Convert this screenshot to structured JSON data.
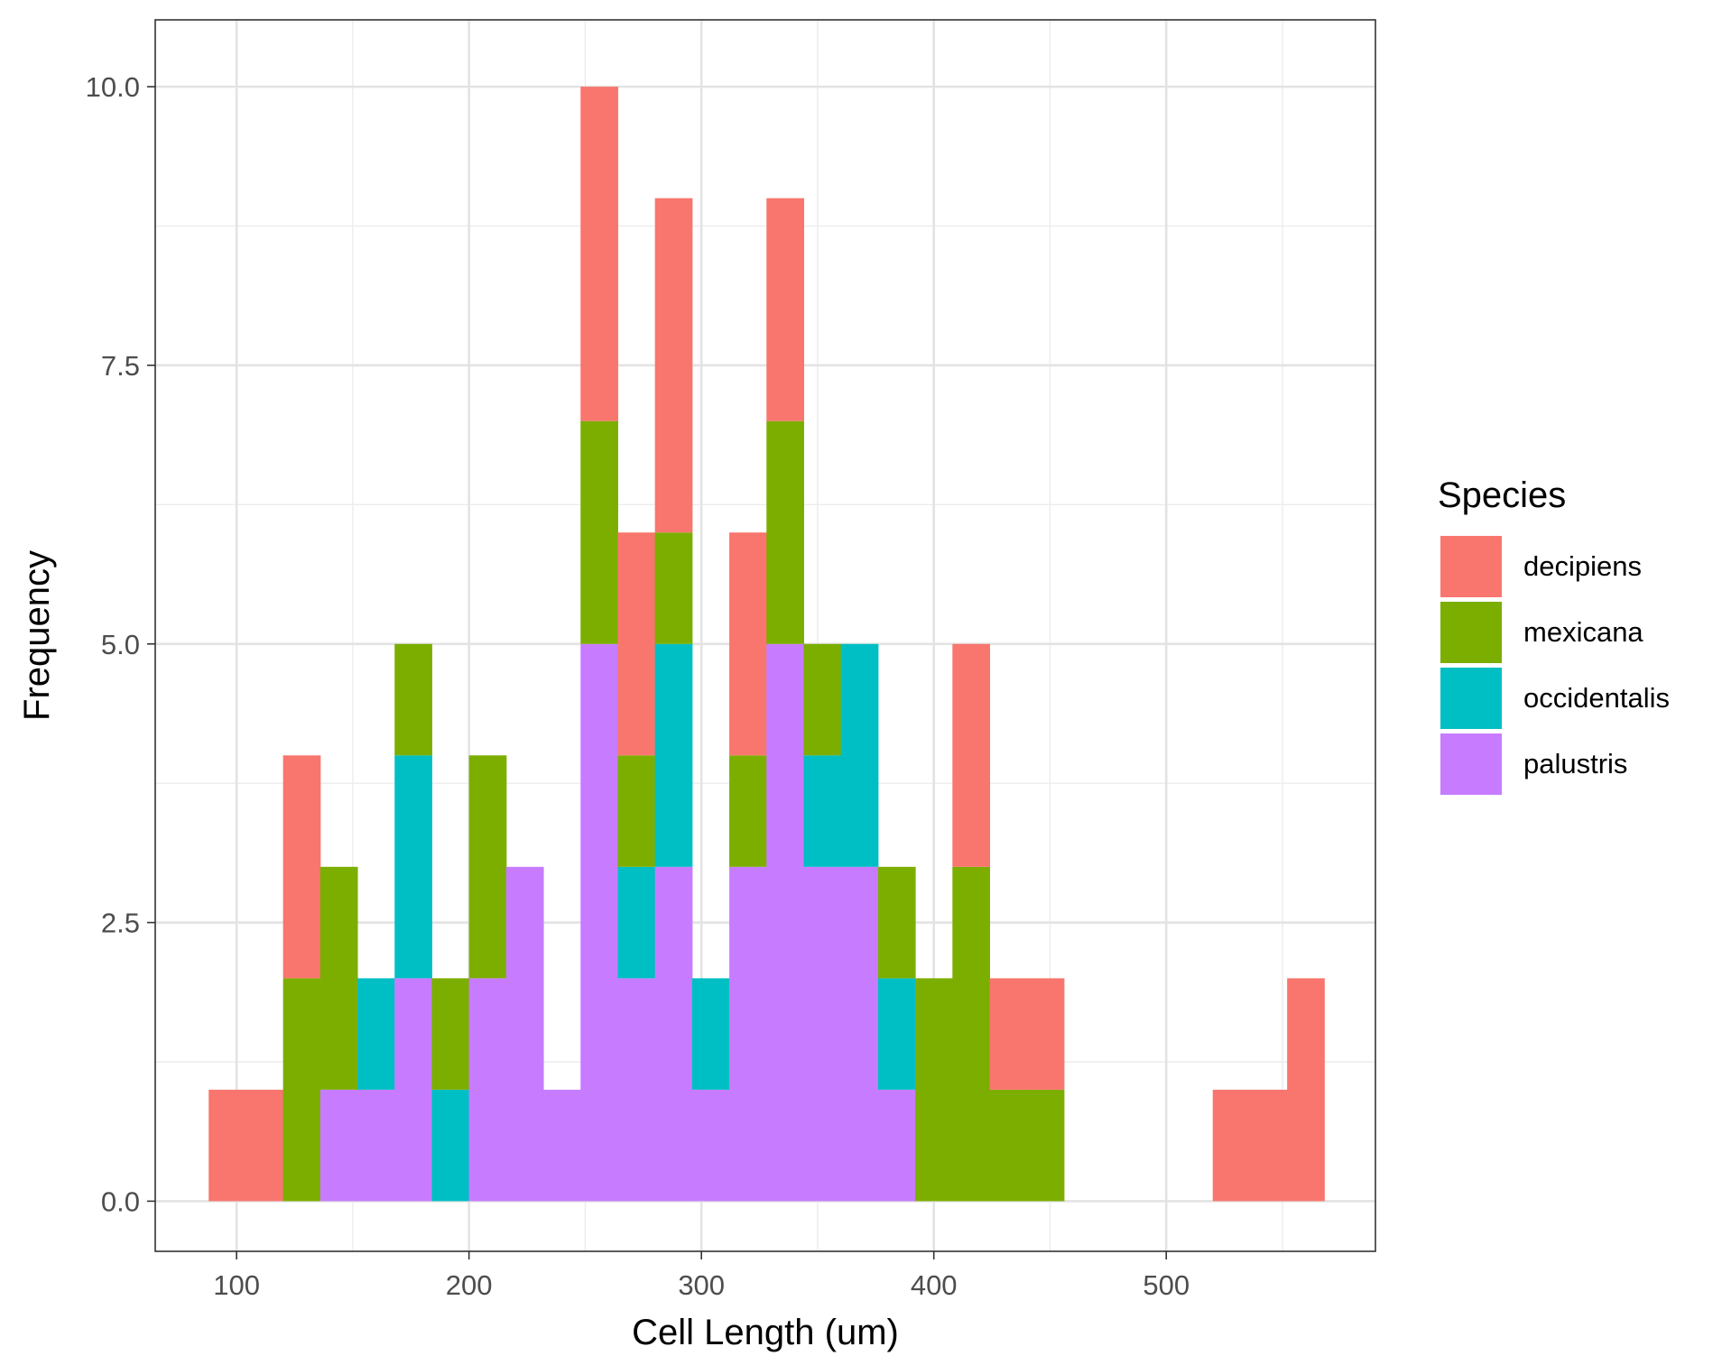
{
  "chart_data": {
    "type": "bar",
    "stacked": true,
    "title": "",
    "xlabel": "Cell Length (um)",
    "ylabel": "Frequency",
    "xlim": [
      65,
      590
    ],
    "ylim": [
      -0.45,
      10.6
    ],
    "x_ticks": [
      100,
      200,
      300,
      400,
      500
    ],
    "y_ticks": [
      0.0,
      2.5,
      5.0,
      7.5,
      10.0
    ],
    "y_tick_labels": [
      "0.0",
      "2.5",
      "5.0",
      "7.5",
      "10.0"
    ],
    "grid": true,
    "legend": {
      "title": "Species",
      "position": "right"
    },
    "bin_width": 16,
    "bin_starts": [
      88,
      104,
      120,
      136,
      152,
      168,
      184,
      200,
      216,
      232,
      248,
      264,
      280,
      296,
      312,
      328,
      344,
      360,
      376,
      392,
      408,
      424,
      440,
      456,
      472,
      488,
      504,
      520,
      536,
      552
    ],
    "series": [
      {
        "name": "palustris",
        "color": "#C77CFF",
        "values": [
          0,
          0,
          0,
          1,
          1,
          2,
          0,
          2,
          3,
          1,
          5,
          2,
          3,
          1,
          3,
          5,
          3,
          3,
          1,
          0,
          0,
          0,
          0,
          0,
          0,
          0,
          0,
          0,
          0,
          0
        ]
      },
      {
        "name": "occidentalis",
        "color": "#00BFC4",
        "values": [
          0,
          0,
          0,
          0,
          1,
          2,
          1,
          0,
          0,
          0,
          0,
          1,
          2,
          1,
          0,
          0,
          1,
          2,
          1,
          0,
          0,
          0,
          0,
          0,
          0,
          0,
          0,
          0,
          0,
          0
        ]
      },
      {
        "name": "mexicana",
        "color": "#7CAE00",
        "values": [
          0,
          0,
          2,
          2,
          0,
          1,
          1,
          2,
          0,
          0,
          2,
          1,
          1,
          0,
          1,
          2,
          1,
          0,
          1,
          2,
          3,
          1,
          1,
          0,
          0,
          0,
          0,
          0,
          0,
          0
        ]
      },
      {
        "name": "decipiens",
        "color": "#F8766D",
        "values": [
          1,
          1,
          2,
          0,
          0,
          0,
          0,
          0,
          0,
          0,
          3,
          2,
          3,
          0,
          2,
          2,
          0,
          0,
          0,
          0,
          2,
          1,
          1,
          0,
          0,
          0,
          0,
          1,
          1,
          2
        ]
      }
    ],
    "legend_order": [
      "decipiens",
      "mexicana",
      "occidentalis",
      "palustris"
    ]
  }
}
